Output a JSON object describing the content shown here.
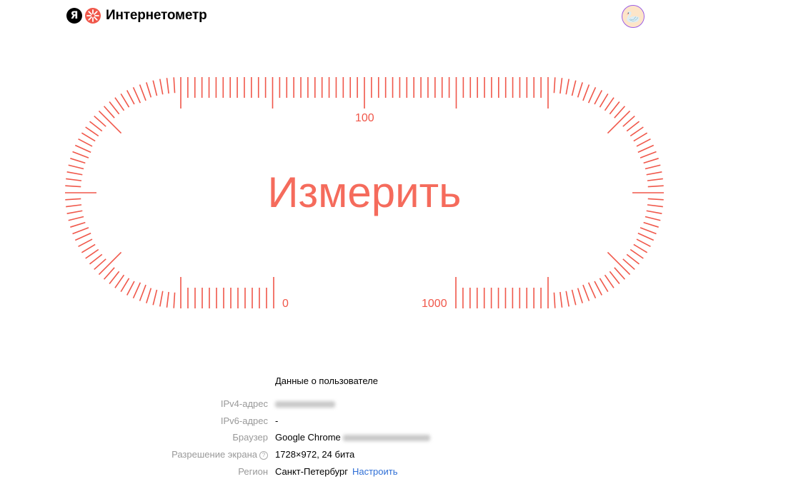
{
  "header": {
    "logo_letter": "Я",
    "brand": "Интернетометр",
    "avatar_icon": "goose-avatar"
  },
  "gauge": {
    "accent_color": "#f0574a",
    "labels": {
      "zero": "0",
      "hundred": "100",
      "thousand": "1000"
    },
    "measure_button": "Измерить"
  },
  "user_info": {
    "title": "Данные о пользователе",
    "rows": [
      {
        "label": "IPv4-адрес",
        "value": ""
      },
      {
        "label": "IPv6-адрес",
        "value": "-"
      },
      {
        "label": "Браузер",
        "value": "Google Chrome"
      },
      {
        "label": "Разрешение экрана",
        "value": "1728×972, 24 бита"
      },
      {
        "label": "Регион",
        "value": "Санкт-Петербург",
        "link": "Настроить"
      }
    ]
  }
}
